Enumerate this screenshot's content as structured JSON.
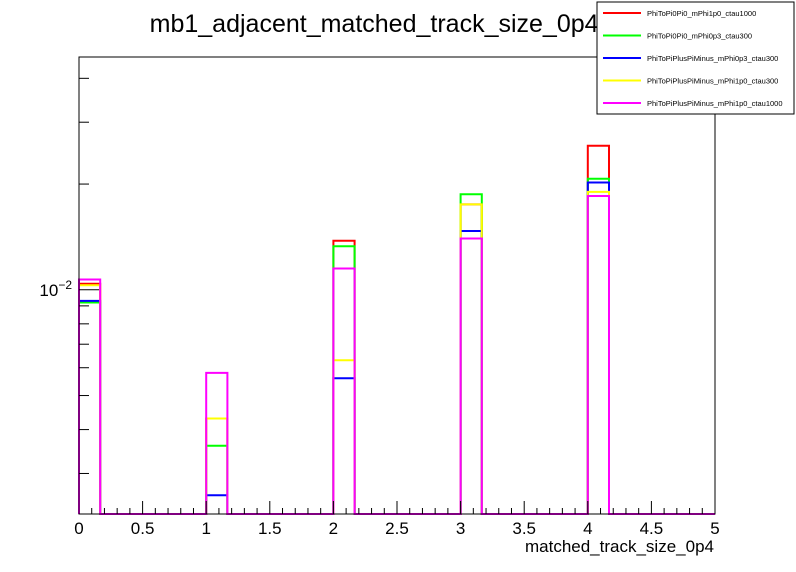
{
  "chart_data": {
    "type": "step-histogram",
    "title": "mb1_adjacent_matched_track_size_0p4_0",
    "xlabel": "matched_track_size_0p4",
    "ylabel": "",
    "xlim": [
      0,
      5
    ],
    "ylog": true,
    "ylim": [
      0.0023,
      0.046
    ],
    "x_tick_labels": [
      "0",
      "0.5",
      "1",
      "1.5",
      "2",
      "2.5",
      "3",
      "3.5",
      "4",
      "4.5",
      "5"
    ],
    "y_tick_label": {
      "base": "10",
      "exponent": "−2"
    },
    "legend_placement": "top-right",
    "bins": [
      [
        0.0,
        0.1667
      ],
      [
        1.0,
        1.1667
      ],
      [
        2.0,
        2.1667
      ],
      [
        3.0,
        3.1667
      ],
      [
        4.0,
        4.1667
      ]
    ],
    "series": [
      {
        "name": "PhiToPi0Pi0_mPhi1p0_ctau1000",
        "color": "#ff0000",
        "values": [
          0.0104,
          0.0043,
          0.0138,
          0.0175,
          0.0257
        ]
      },
      {
        "name": "PhiToPi0Pi0_mPhi0p3_ctau300",
        "color": "#00ff00",
        "values": [
          0.0092,
          0.0036,
          0.0133,
          0.0187,
          0.0207
        ]
      },
      {
        "name": "PhiToPiPlusPiMinus_mPhi0p3_ctau300",
        "color": "#0000ff",
        "values": [
          0.0093,
          0.0026,
          0.0056,
          0.0147,
          0.0202
        ]
      },
      {
        "name": "PhiToPiPlusPiMinus_mPhi1p0_ctau300",
        "color": "#ffff00",
        "values": [
          0.0103,
          0.0043,
          0.0063,
          0.0175,
          0.019
        ]
      },
      {
        "name": "PhiToPiPlusPiMinus_mPhi1p0_ctau1000",
        "color": "#ff00ff",
        "values": [
          0.0107,
          0.0058,
          0.0115,
          0.014,
          0.0185
        ]
      }
    ]
  }
}
